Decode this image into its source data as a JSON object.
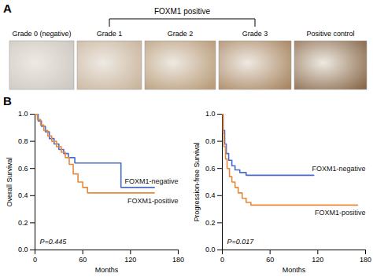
{
  "panel_a": {
    "label": "A",
    "bracket_label": "FOXM1 positive",
    "images": [
      "Grade 0 (negative)",
      "Grade 1",
      "Grade 2",
      "Grade 3",
      "Positive control"
    ],
    "bracket_images": [
      "Grade 1",
      "Grade 2",
      "Grade 3"
    ]
  },
  "panel_b": {
    "label": "B"
  },
  "chart_data": [
    {
      "type": "line",
      "x_label": "Months",
      "y_label": "Overall Survival",
      "annotation": "P=0.445",
      "xlim": [
        0,
        180
      ],
      "xticks": [
        0,
        60,
        120,
        180
      ],
      "ylim": [
        0,
        1
      ],
      "yticks": [
        {
          "value": 0,
          "label": "0.0"
        },
        0.2,
        0.4,
        0.6,
        0.8,
        {
          "value": 1,
          "label": "1.0"
        }
      ],
      "series": [
        {
          "name": "FOXM1-negative",
          "color": "#4a6cc8",
          "line_style": "step",
          "x": [
            0,
            4,
            8,
            13,
            18,
            24,
            30,
            36,
            42,
            50,
            108,
            150
          ],
          "values": [
            1,
            0.95,
            0.91,
            0.87,
            0.82,
            0.78,
            0.74,
            0.71,
            0.68,
            0.64,
            0.46,
            0.46
          ]
        },
        {
          "name": "FOXM1-positive",
          "color": "#e8893a",
          "line_style": "step",
          "x": [
            0,
            3,
            7,
            11,
            16,
            21,
            27,
            33,
            38,
            43,
            48,
            54,
            60,
            66,
            150
          ],
          "values": [
            1,
            0.96,
            0.92,
            0.88,
            0.84,
            0.8,
            0.76,
            0.72,
            0.68,
            0.63,
            0.56,
            0.5,
            0.46,
            0.42,
            0.42
          ]
        }
      ]
    },
    {
      "type": "line",
      "x_label": "Months",
      "y_label": "Progression-free Survival",
      "annotation": "P=0.017",
      "xlim": [
        0,
        180
      ],
      "xticks": [
        0,
        60,
        120,
        180
      ],
      "ylim": [
        0,
        1
      ],
      "yticks": [
        {
          "value": 0,
          "label": "0.0"
        },
        0.2,
        0.4,
        0.6,
        0.8,
        {
          "value": 1,
          "label": "1.0"
        }
      ],
      "series": [
        {
          "name": "FOXM1-negative",
          "color": "#4a6cc8",
          "line_style": "step",
          "x": [
            0,
            1,
            3,
            5,
            8,
            12,
            16,
            22,
            30,
            115
          ],
          "values": [
            1,
            0.88,
            0.78,
            0.71,
            0.66,
            0.62,
            0.59,
            0.57,
            0.55,
            0.55
          ]
        },
        {
          "name": "FOXM1-positive",
          "color": "#e8893a",
          "line_style": "step",
          "x": [
            0,
            1,
            2,
            4,
            6,
            9,
            12,
            16,
            20,
            25,
            30,
            36,
            170
          ],
          "values": [
            1,
            0.86,
            0.76,
            0.67,
            0.6,
            0.54,
            0.5,
            0.46,
            0.42,
            0.38,
            0.35,
            0.33,
            0.33
          ]
        }
      ]
    }
  ]
}
